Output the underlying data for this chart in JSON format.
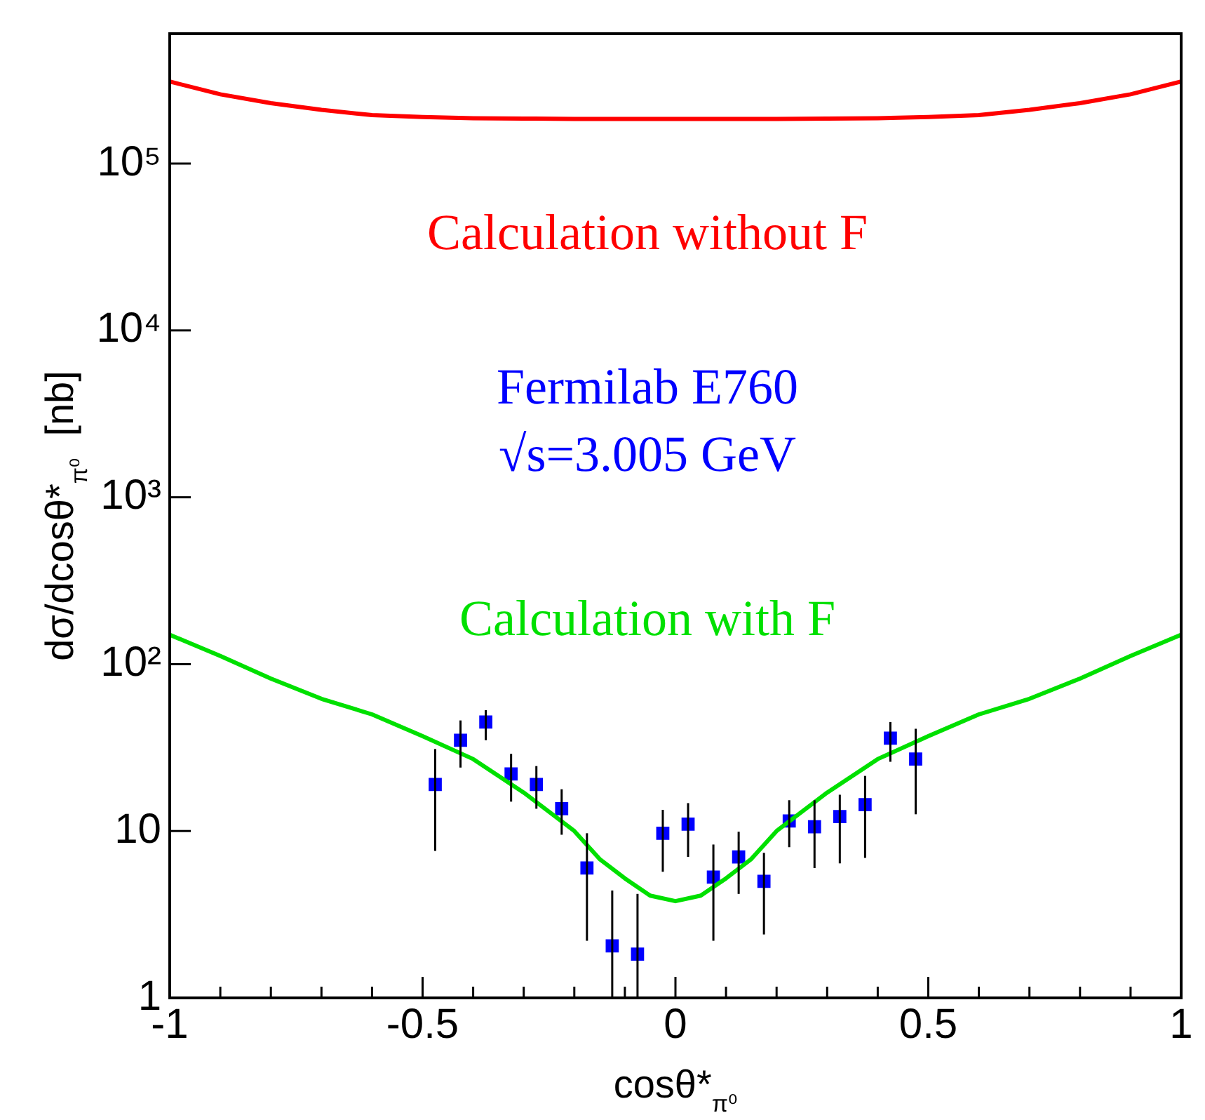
{
  "chart_data": {
    "type": "line",
    "xlabel": "cosθ*$_{π⁰}$",
    "ylabel": "dσ/dcosθ*$_{π⁰}$  [nb]",
    "log": "y",
    "grid": false,
    "legend": false,
    "xlim": [
      -1,
      1
    ],
    "xticks": [
      -1,
      {
        "value": -0.9,
        "label": null
      },
      {
        "value": -0.8,
        "label": null
      },
      {
        "value": -0.7,
        "label": null
      },
      {
        "value": -0.6,
        "label": null
      },
      -0.5,
      {
        "value": -0.4,
        "label": null
      },
      {
        "value": -0.3,
        "label": null
      },
      {
        "value": -0.2,
        "label": null
      },
      {
        "value": -0.1,
        "label": null
      },
      0,
      {
        "value": 0.1,
        "label": null
      },
      {
        "value": 0.2,
        "label": null
      },
      {
        "value": 0.3,
        "label": null
      },
      {
        "value": 0.4,
        "label": null
      },
      0.5,
      {
        "value": 0.6,
        "label": null
      },
      {
        "value": 0.7,
        "label": null
      },
      {
        "value": 0.8,
        "label": null
      },
      {
        "value": 0.9,
        "label": null
      },
      1
    ],
    "ylim": [
      1,
      600000
    ],
    "yticks": [
      1,
      10,
      {
        "value": 100,
        "label": "10²"
      },
      {
        "value": 1000,
        "label": "10³"
      },
      {
        "value": 10000,
        "label": "10⁴"
      },
      {
        "value": 100000,
        "label": "10⁵"
      }
    ],
    "series": [
      {
        "name": "Calculation without F",
        "type": "line",
        "color": "#ff0000",
        "marker": "none",
        "x": [
          -1,
          -0.9,
          -0.8,
          -0.7,
          -0.6,
          -0.5,
          -0.4,
          -0.3,
          -0.2,
          -0.1,
          0,
          0.1,
          0.2,
          0.3,
          0.4,
          0.5,
          0.6,
          0.7,
          0.8,
          0.9,
          1
        ],
        "values": [
          310000,
          260000,
          230000,
          210000,
          195000,
          190000,
          187000,
          186000,
          185000,
          185000,
          185000,
          185000,
          185000,
          186000,
          187000,
          190000,
          195000,
          210000,
          230000,
          260000,
          310000
        ]
      },
      {
        "name": "Calculation with F",
        "type": "line",
        "color": "#00e000",
        "marker": "none",
        "x": [
          -1,
          -0.9,
          -0.8,
          -0.7,
          -0.6,
          -0.5,
          -0.4,
          -0.3,
          -0.2,
          -0.15,
          -0.1,
          -0.05,
          0,
          0.05,
          0.1,
          0.15,
          0.2,
          0.3,
          0.4,
          0.5,
          0.6,
          0.7,
          0.8,
          0.9,
          1
        ],
        "values": [
          150,
          112,
          82,
          62,
          50,
          37,
          27,
          17,
          10,
          6.8,
          5.2,
          4.1,
          3.8,
          4.1,
          5.2,
          6.8,
          10,
          17,
          27,
          37,
          50,
          62,
          82,
          112,
          150
        ]
      },
      {
        "name": "Fermilab E760",
        "type": "scatter",
        "color": "#0000ff",
        "marker": "square",
        "x": [
          -0.475,
          -0.425,
          -0.375,
          -0.325,
          -0.275,
          -0.225,
          -0.175,
          -0.125,
          -0.075,
          -0.025,
          0.025,
          0.075,
          0.125,
          0.175,
          0.225,
          0.275,
          0.325,
          0.375,
          0.425,
          0.475
        ],
        "values": [
          19,
          35,
          45,
          22,
          19,
          13.6,
          6,
          2.05,
          1.83,
          9.7,
          11,
          5.3,
          7,
          5,
          11.5,
          10.6,
          12.2,
          14.4,
          36,
          27
        ],
        "errors": [
          [
            7.6,
            31
          ],
          [
            24,
            46
          ],
          [
            35,
            53
          ],
          [
            15,
            29
          ],
          [
            13.6,
            24.5
          ],
          [
            9.5,
            17.8
          ],
          [
            2.2,
            9.7
          ],
          [
            1,
            4.4
          ],
          [
            1,
            4.2
          ],
          [
            5.7,
            13.4
          ],
          [
            7,
            14.7
          ],
          [
            2.2,
            8.3
          ],
          [
            4.2,
            9.9
          ],
          [
            2.4,
            7.4
          ],
          [
            8,
            15.3
          ],
          [
            6,
            15.3
          ],
          [
            6.4,
            16.5
          ],
          [
            6.9,
            21.4
          ],
          [
            26,
            45
          ],
          [
            12.6,
            41
          ]
        ]
      }
    ],
    "annotations": [
      "√s=3.005 GeV"
    ]
  }
}
